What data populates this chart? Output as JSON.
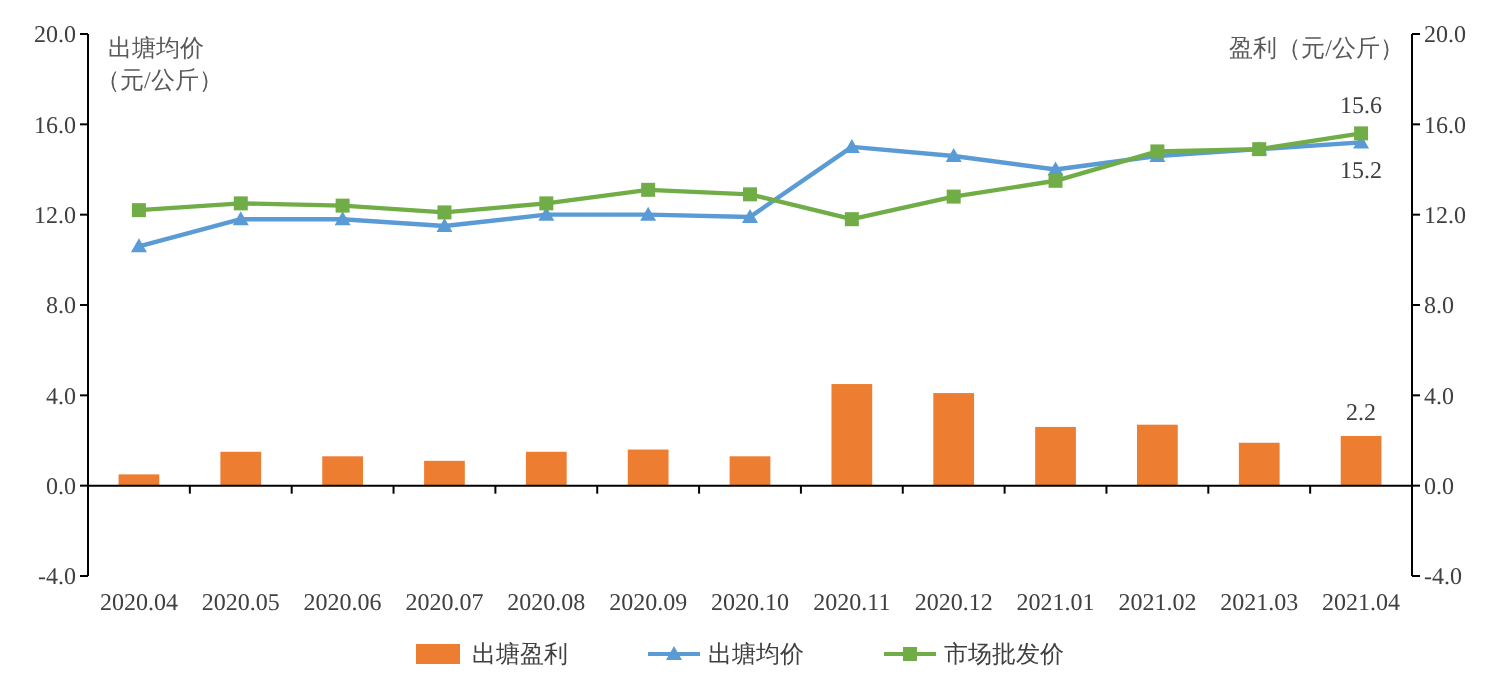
{
  "chart_data": {
    "type": "line",
    "ylabel": "出塘均价（元/公斤）",
    "y2label": "盈利（元/公斤）",
    "categories": [
      "2020.04",
      "2020.05",
      "2020.06",
      "2020.07",
      "2020.08",
      "2020.09",
      "2020.10",
      "2020.11",
      "2020.12",
      "2021.01",
      "2021.02",
      "2021.03",
      "2021.04"
    ],
    "series": [
      {
        "name": "出塘盈利",
        "type": "bar",
        "axis": "y2",
        "color": "#ed7d31",
        "values": [
          0.5,
          1.5,
          1.3,
          1.1,
          1.5,
          1.6,
          1.3,
          4.5,
          4.1,
          2.6,
          2.7,
          1.9,
          2.2
        ],
        "value_labels": [
          null,
          null,
          null,
          null,
          null,
          null,
          null,
          null,
          null,
          null,
          null,
          null,
          "2.2"
        ]
      },
      {
        "name": "出塘均价",
        "marker": "triangle",
        "color": "#5b9bd5",
        "values": [
          10.6,
          11.8,
          11.8,
          11.5,
          12.0,
          12.0,
          11.9,
          15.0,
          14.6,
          14.0,
          14.6,
          14.9,
          15.2
        ],
        "value_labels": [
          null,
          null,
          null,
          null,
          null,
          null,
          null,
          null,
          null,
          null,
          null,
          null,
          "15.2"
        ]
      },
      {
        "name": "市场批发价",
        "marker": "square",
        "color": "#70ad47",
        "values": [
          12.2,
          12.5,
          12.4,
          12.1,
          12.5,
          13.1,
          12.9,
          11.8,
          12.8,
          13.5,
          14.8,
          14.9,
          15.6
        ],
        "value_labels": [
          null,
          null,
          null,
          null,
          null,
          null,
          null,
          null,
          null,
          null,
          null,
          null,
          "15.6"
        ]
      }
    ],
    "ylim": [
      -4,
      20
    ],
    "yticks": [
      {
        "value": -4,
        "label": "-4.0"
      },
      {
        "value": 0,
        "label": "0.0"
      },
      {
        "value": 4,
        "label": "4.0"
      },
      {
        "value": 8,
        "label": "8.0"
      },
      {
        "value": 12,
        "label": "12.0"
      },
      {
        "value": 16,
        "label": "16.0"
      },
      {
        "value": 20,
        "label": "20.0"
      }
    ],
    "y2lim": [
      -4,
      20
    ],
    "y2ticks": [
      {
        "value": -4,
        "label": "-4.0"
      },
      {
        "value": 0,
        "label": "0.0"
      },
      {
        "value": 4,
        "label": "4.0"
      },
      {
        "value": 8,
        "label": "8.0"
      },
      {
        "value": 12,
        "label": "12.0"
      },
      {
        "value": 16,
        "label": "16.0"
      },
      {
        "value": 20,
        "label": "20.0"
      }
    ],
    "legend": "bottom"
  }
}
